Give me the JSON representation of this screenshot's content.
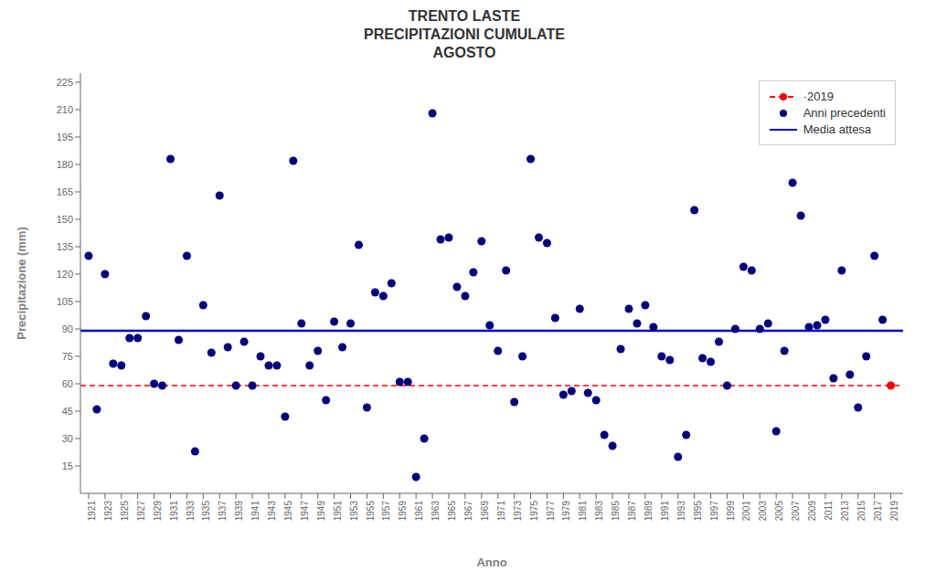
{
  "chart_data": {
    "type": "scatter",
    "title": "TRENTO LASTE\nPRECIPITAZIONI CUMULATE\nAGOSTO",
    "x_label": "Anno",
    "y_label": "Precipitazione (mm)",
    "xlim": [
      1920.0,
      2020.5
    ],
    "xticks": [
      1921,
      1923,
      1925,
      1927,
      1929,
      1931,
      1933,
      1935,
      1937,
      1939,
      1941,
      1943,
      1945,
      1947,
      1949,
      1951,
      1953,
      1955,
      1957,
      1959,
      1961,
      1963,
      1965,
      1967,
      1969,
      1971,
      1973,
      1975,
      1977,
      1979,
      1981,
      1983,
      1985,
      1987,
      1989,
      1991,
      1993,
      1995,
      1997,
      1999,
      2001,
      2003,
      2005,
      2007,
      2009,
      2011,
      2013,
      2015,
      2017,
      2019
    ],
    "ylim": [
      0,
      230
    ],
    "yticks": [
      15,
      30,
      45,
      60,
      75,
      90,
      105,
      120,
      135,
      150,
      165,
      180,
      195,
      210,
      225
    ],
    "grid": false,
    "legend": "upper right",
    "series": [
      {
        "name": "·2019",
        "type": "scatter",
        "color": "#ff0000",
        "marker": "circle",
        "line_style": "dashed",
        "x": [
          2019
        ],
        "values": [
          59
        ]
      },
      {
        "name": "Anni precedenti",
        "type": "scatter",
        "color": "#000080",
        "marker": "circle",
        "x": [
          1921,
          1922,
          1923,
          1924,
          1925,
          1926,
          1927,
          1928,
          1929,
          1930,
          1931,
          1932,
          1933,
          1934,
          1935,
          1936,
          1937,
          1938,
          1939,
          1940,
          1941,
          1942,
          1943,
          1944,
          1945,
          1946,
          1947,
          1948,
          1949,
          1950,
          1951,
          1952,
          1953,
          1954,
          1955,
          1956,
          1957,
          1958,
          1959,
          1960,
          1961,
          1962,
          1963,
          1964,
          1965,
          1966,
          1967,
          1968,
          1969,
          1970,
          1971,
          1972,
          1973,
          1974,
          1975,
          1976,
          1977,
          1978,
          1979,
          1980,
          1981,
          1982,
          1983,
          1984,
          1985,
          1986,
          1987,
          1988,
          1989,
          1990,
          1991,
          1992,
          1993,
          1994,
          1995,
          1996,
          1997,
          1998,
          1999,
          2000,
          2001,
          2002,
          2003,
          2004,
          2005,
          2006,
          2007,
          2008,
          2009,
          2010,
          2011,
          2012,
          2013,
          2014,
          2015,
          2016,
          2017,
          2018
        ],
        "values": [
          130,
          46,
          120,
          71,
          70,
          85,
          85,
          97,
          60,
          59,
          183,
          84,
          130,
          23,
          103,
          77,
          163,
          80,
          59,
          83,
          59,
          75,
          70,
          70,
          42,
          182,
          93,
          70,
          78,
          51,
          94,
          80,
          93,
          136,
          47,
          110,
          108,
          115,
          61,
          61,
          9,
          30,
          208,
          139,
          140,
          113,
          108,
          121,
          138,
          92,
          78,
          122,
          50,
          75,
          183,
          140,
          137,
          96,
          54,
          56,
          101,
          55,
          51,
          32,
          26,
          79,
          101,
          93,
          103,
          91,
          75,
          73,
          20,
          32,
          155,
          74,
          72,
          83,
          59,
          90,
          124,
          122,
          90,
          93,
          34,
          78,
          170,
          152,
          91,
          92,
          95,
          63,
          122,
          65,
          47,
          75,
          130,
          95
        ]
      },
      {
        "name": "Media attesa",
        "type": "hline",
        "color": "#0000cd",
        "line_style": "solid",
        "values": [
          89
        ]
      }
    ]
  }
}
